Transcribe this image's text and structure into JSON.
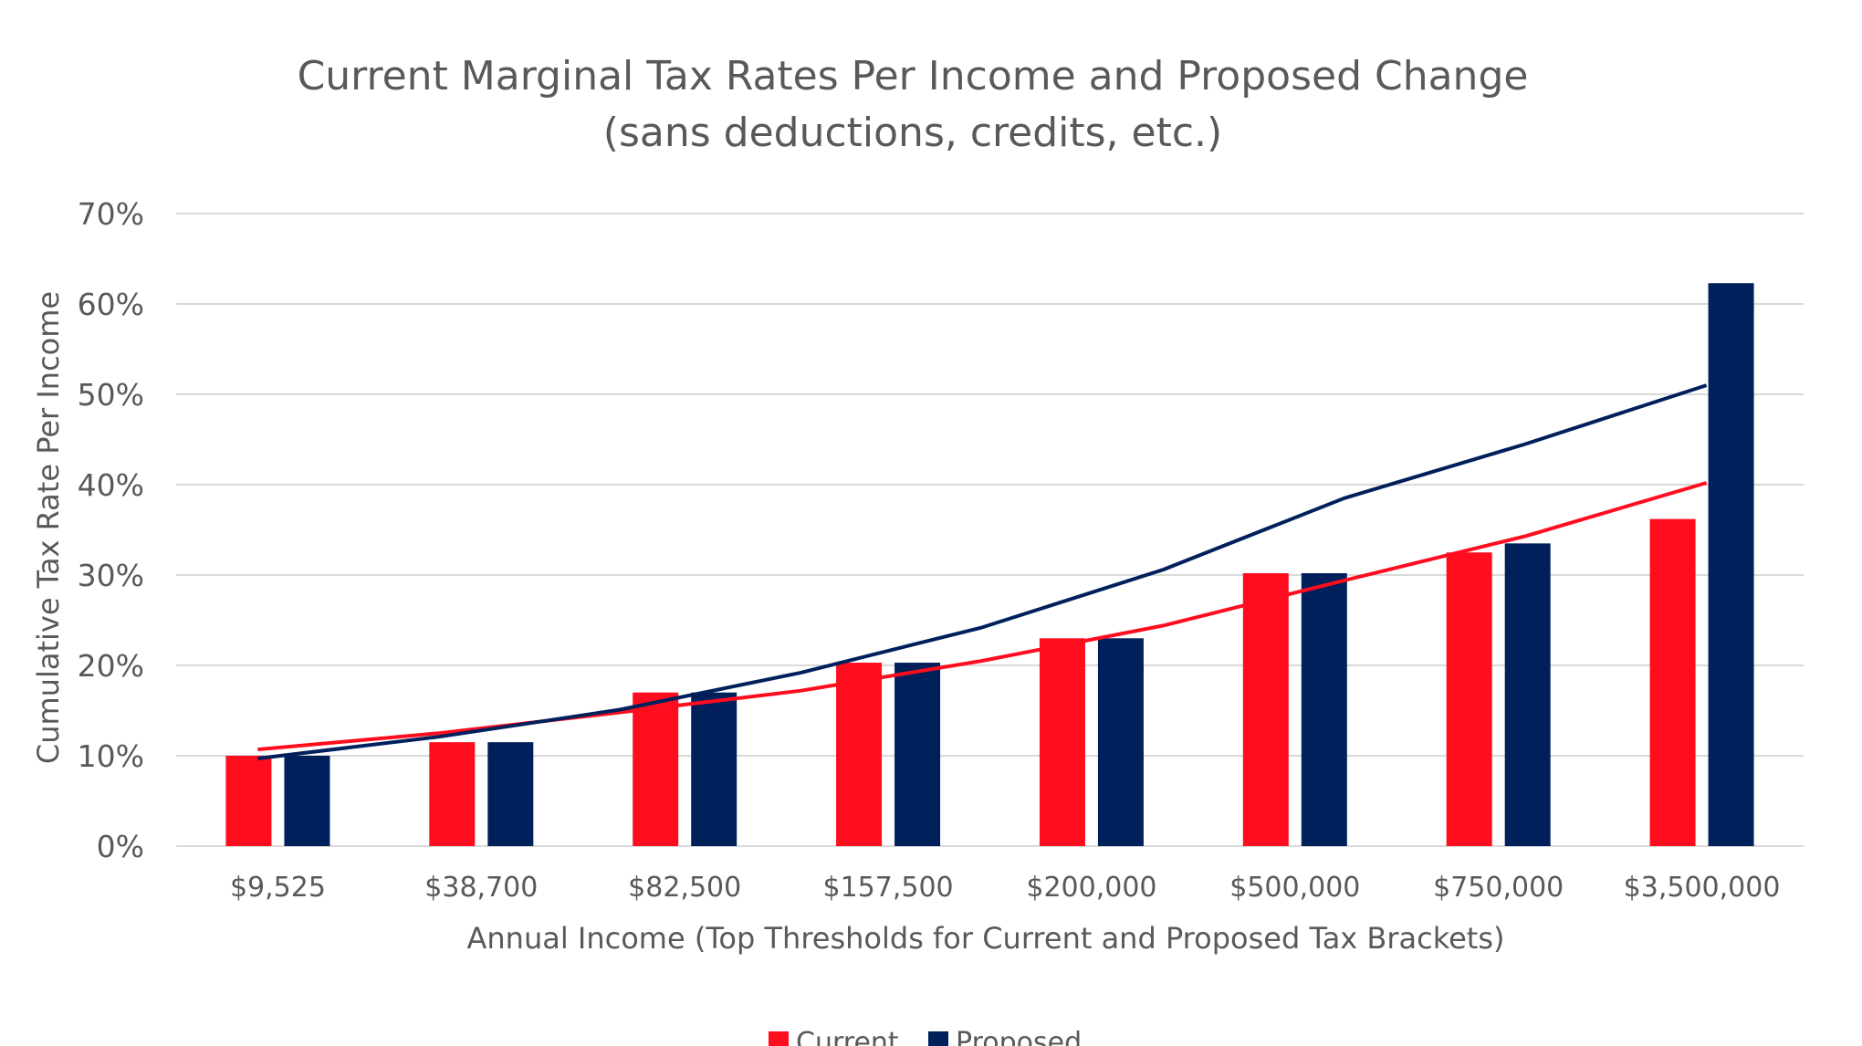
{
  "chart_data": {
    "type": "bar",
    "title": [
      "Current Marginal Tax Rates Per Income and Proposed Change",
      "(sans deductions, credits, etc.)"
    ],
    "xlabel": "Annual Income (Top Thresholds for Current and Proposed Tax Brackets)",
    "ylabel": "Cumulative Tax Rate Per Income",
    "ylim": [
      0,
      70
    ],
    "yticks": [
      0,
      10,
      20,
      30,
      40,
      50,
      60,
      70
    ],
    "ytick_labels": [
      "0%",
      "10%",
      "20%",
      "30%",
      "40%",
      "50%",
      "60%",
      "70%"
    ],
    "grid": true,
    "legend_position": "bottom",
    "categories": [
      "$9,525",
      "$38,700",
      "$82,500",
      "$157,500",
      "$200,000",
      "$500,000",
      "$750,000",
      "$3,500,000"
    ],
    "series": [
      {
        "name": "Current",
        "color": "#ff0d1f",
        "values": [
          10,
          11.5,
          17,
          20.3,
          23,
          30.2,
          32.5,
          36.2
        ],
        "trendline": {
          "type": "exponential",
          "values": [
            10.7,
            12.5,
            14.8,
            17.2,
            20.5,
            24.4,
            29.4,
            34.3,
            40.2
          ]
        }
      },
      {
        "name": "Proposed",
        "color": "#00205b",
        "values": [
          10,
          11.5,
          17,
          20.3,
          23,
          30.2,
          33.5,
          62.3
        ],
        "trendline": {
          "type": "exponential",
          "values": [
            9.7,
            12.1,
            15.1,
            19.2,
            24.2,
            30.6,
            38.5,
            44.5,
            51.0
          ]
        }
      }
    ]
  }
}
